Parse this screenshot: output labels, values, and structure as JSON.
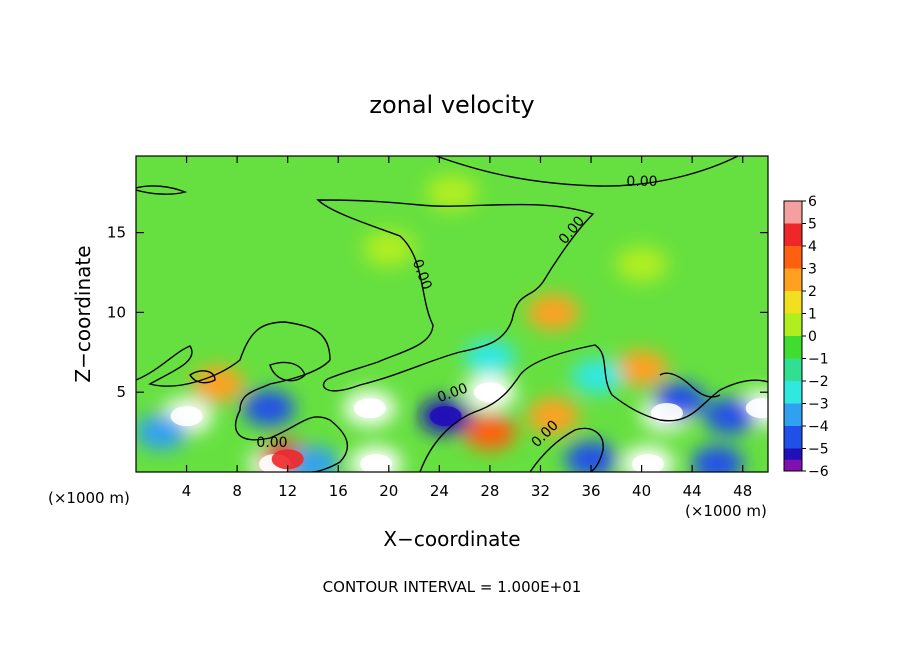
{
  "chart_data": {
    "type": "heatmap",
    "title": "zonal velocity",
    "xlabel": "X−coordinate",
    "ylabel": "Z−coordinate",
    "x_unit_left": "(×1000 m)",
    "x_unit_right": "(×1000 m)",
    "xlim": [
      0,
      50
    ],
    "ylim": [
      0,
      19.8
    ],
    "x_ticks": [
      4,
      8,
      12,
      16,
      20,
      24,
      28,
      32,
      36,
      40,
      44,
      48
    ],
    "y_ticks": [
      5,
      10,
      15
    ],
    "colorbar": {
      "ticks": [
        6,
        5,
        4,
        3,
        2,
        1,
        0,
        -1,
        -2,
        -3,
        -4,
        -5,
        -6
      ],
      "tick_labels": [
        "6",
        "5",
        "4",
        "3",
        "2",
        "1",
        "0",
        "−1",
        "−2",
        "−3",
        "−4",
        "−5",
        "−6"
      ],
      "colors": [
        "#f4a0a0",
        "#ee2828",
        "#ff6010",
        "#ffa020",
        "#f0e020",
        "#b0ee20",
        "#40dd30",
        "#30e090",
        "#30e8e0",
        "#30a0f0",
        "#2050e8",
        "#2010b8",
        "#8010b0"
      ]
    },
    "contour_labels": [
      "0.00",
      "0.00",
      "0.00",
      "0.00",
      "0.00",
      "0.00"
    ],
    "contour_interval_text": "CONTOUR INTERVAL = 1.000E+01",
    "grid": false,
    "legend": "colorbar-right",
    "field_features": [
      {
        "x": 4,
        "z": 3.5,
        "value": 6
      },
      {
        "x": 11,
        "z": 0.5,
        "value": 6
      },
      {
        "x": 18.5,
        "z": 4,
        "value": 6
      },
      {
        "x": 19,
        "z": 0.5,
        "value": 6
      },
      {
        "x": 28,
        "z": 5,
        "value": 6
      },
      {
        "x": 40.5,
        "z": 0.5,
        "value": 6
      },
      {
        "x": 42,
        "z": 3.7,
        "value": 6
      },
      {
        "x": 49.5,
        "z": 4,
        "value": 6
      },
      {
        "x": 12,
        "z": 0.8,
        "value": 5
      },
      {
        "x": 28,
        "z": 2.5,
        "value": 4
      },
      {
        "x": 33,
        "z": 3.5,
        "value": 3
      },
      {
        "x": 40,
        "z": 6.5,
        "value": 3
      },
      {
        "x": 33,
        "z": 10,
        "value": 3
      },
      {
        "x": 6.5,
        "z": 5.5,
        "value": 3
      },
      {
        "x": 10.5,
        "z": 4,
        "value": -4
      },
      {
        "x": 24.5,
        "z": 3.5,
        "value": -5
      },
      {
        "x": 43,
        "z": 4.5,
        "value": -4
      },
      {
        "x": 47,
        "z": 3.5,
        "value": -4
      },
      {
        "x": 2,
        "z": 2.5,
        "value": -3
      },
      {
        "x": 14,
        "z": 0.5,
        "value": -3
      },
      {
        "x": 36,
        "z": 0.8,
        "value": -4
      },
      {
        "x": 46,
        "z": 0.5,
        "value": -4
      },
      {
        "x": 28,
        "z": 7.2,
        "value": -2
      },
      {
        "x": 36.5,
        "z": 6,
        "value": -2
      },
      {
        "x": 20,
        "z": 14,
        "value": 1
      },
      {
        "x": 40,
        "z": 13,
        "value": 1
      },
      {
        "x": 25,
        "z": 17.5,
        "value": 1
      }
    ]
  }
}
